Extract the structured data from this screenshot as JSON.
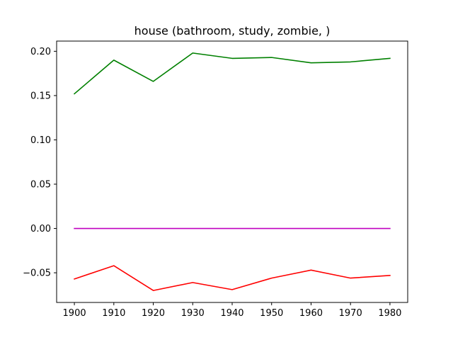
{
  "chart_data": {
    "type": "line",
    "title": "house (bathroom, study, zombie, )",
    "xlabel": "",
    "ylabel": "",
    "x": [
      1900,
      1910,
      1920,
      1930,
      1940,
      1950,
      1960,
      1970,
      1980
    ],
    "xlim": [
      1895.5,
      1984.5
    ],
    "ylim": [
      -0.0835,
      0.2115
    ],
    "xticks": [
      1900,
      1910,
      1920,
      1930,
      1940,
      1950,
      1960,
      1970,
      1980
    ],
    "yticks": [
      -0.05,
      0.0,
      0.05,
      0.1,
      0.15,
      0.2
    ],
    "ytick_labels": [
      "−0.05",
      "0.00",
      "0.05",
      "0.10",
      "0.15",
      "0.20"
    ],
    "grid": false,
    "legend": "none",
    "series": [
      {
        "color": "#008000",
        "values": [
          0.152,
          0.19,
          0.166,
          0.198,
          0.192,
          0.193,
          0.187,
          0.188,
          0.192
        ]
      },
      {
        "color": "#bf00bf",
        "values": [
          0.0,
          0.0,
          0.0,
          0.0,
          0.0,
          0.0,
          0.0,
          0.0,
          0.0
        ]
      },
      {
        "color": "#ff0000",
        "values": [
          -0.057,
          -0.042,
          -0.07,
          -0.061,
          -0.069,
          -0.056,
          -0.047,
          -0.056,
          -0.053
        ]
      }
    ]
  }
}
